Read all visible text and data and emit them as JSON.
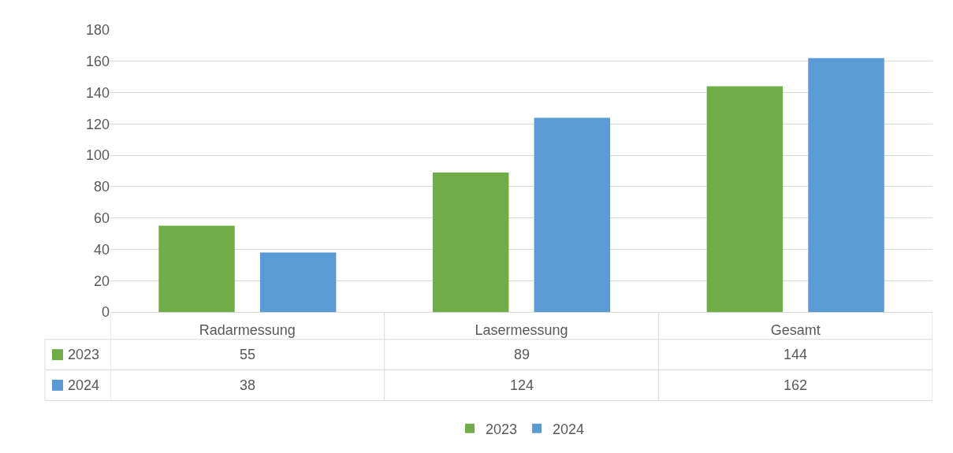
{
  "chart_data": {
    "type": "bar",
    "categories": [
      "Radarmessung",
      "Lasermessung",
      "Gesamt"
    ],
    "series": [
      {
        "name": "2023",
        "color": "#70ad47",
        "values": [
          55,
          89,
          144
        ]
      },
      {
        "name": "2024",
        "color": "#5b9bd5",
        "values": [
          38,
          124,
          162
        ]
      }
    ],
    "ylim": [
      0,
      180
    ],
    "yticks": [
      0,
      20,
      40,
      60,
      80,
      100,
      120,
      140,
      160,
      180
    ],
    "grid": "y",
    "legend": "bottom",
    "data_labels": true
  }
}
